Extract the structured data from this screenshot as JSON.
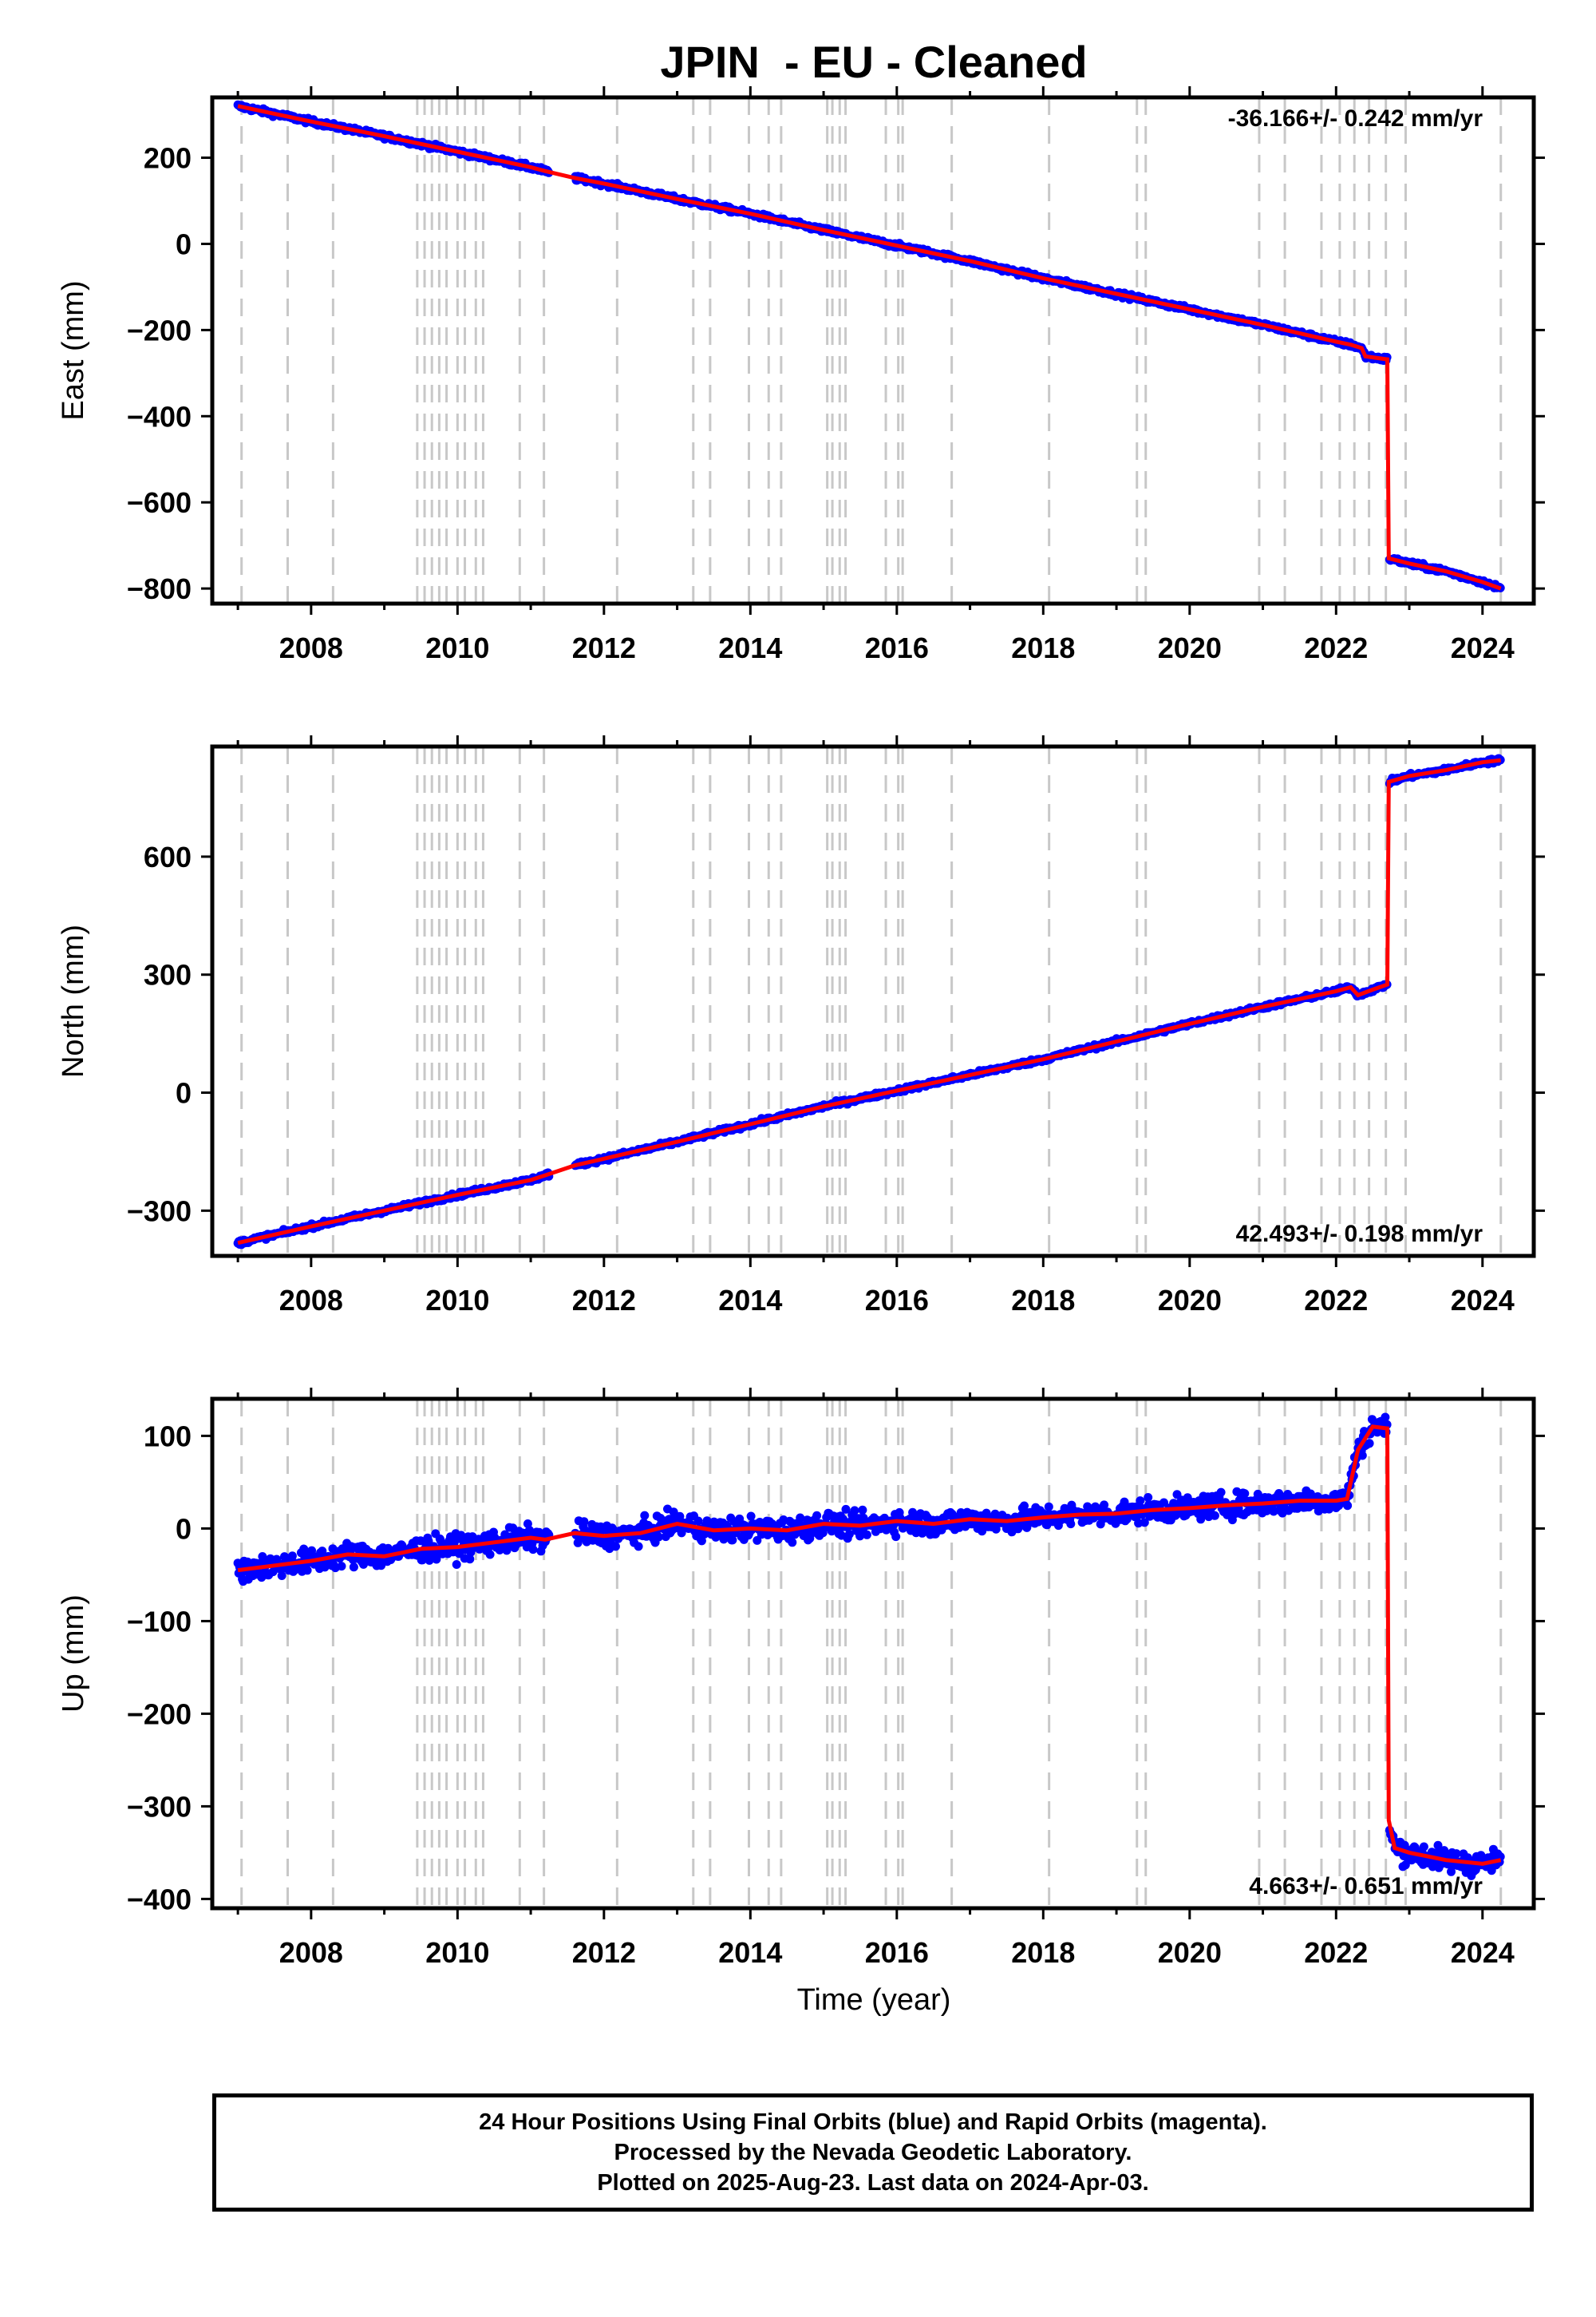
{
  "title": "JPIN  - EU - Cleaned",
  "xlabel": "Time (year)",
  "caption": [
    "24 Hour Positions Using Final Orbits (blue) and Rapid Orbits (magenta).",
    "Processed by the Nevada Geodetic Laboratory.",
    "Plotted on 2025-Aug-23. Last data on 2024-Apr-03."
  ],
  "colors": {
    "data": "#0000ff",
    "model": "#ff0000",
    "event_line": "#c8c8c8",
    "frame": "#000000"
  },
  "chart_data": [
    {
      "type": "scatter",
      "ylabel": "East (mm)",
      "rate_label": "-36.166+/- 0.242 mm/yr",
      "rate_position": "top-right",
      "xlim": [
        2006.65,
        2024.7
      ],
      "ylim": [
        -835,
        340
      ],
      "x_ticks": [
        2008,
        2010,
        2012,
        2014,
        2016,
        2018,
        2020,
        2022,
        2024
      ],
      "y_ticks": [
        -800,
        -600,
        -400,
        -200,
        0,
        200
      ],
      "y_tick_labels": [
        "−800",
        "−600",
        "−400",
        "−200",
        "0",
        "200"
      ],
      "gap": [
        2011.25,
        2011.6
      ],
      "series": [
        {
          "role": "daily positions (blue)",
          "x": [
            2007.0,
            2008.0,
            2009.0,
            2010.0,
            2011.0,
            2011.2,
            2011.6,
            2012.0,
            2013.0,
            2014.0,
            2015.0,
            2016.0,
            2017.0,
            2018.0,
            2019.0,
            2020.0,
            2021.0,
            2022.0,
            2022.2,
            2022.35,
            2022.4,
            2022.7,
            2022.72,
            2023.0,
            2023.5,
            2024.0,
            2024.25
          ],
          "y": [
            320,
            284,
            250,
            214,
            178,
            169,
            153,
            140,
            104,
            70,
            32,
            -4,
            -40,
            -80,
            -116,
            -152,
            -188,
            -227,
            -234,
            -242,
            -261,
            -268,
            -730,
            -742,
            -760,
            -785,
            -800
          ]
        },
        {
          "role": "model fit (red)",
          "x": [
            2007.0,
            2008.0,
            2009.0,
            2010.0,
            2011.0,
            2011.2,
            2011.6,
            2012.0,
            2013.0,
            2014.0,
            2015.0,
            2016.0,
            2017.0,
            2018.0,
            2019.0,
            2020.0,
            2021.0,
            2022.0,
            2022.2,
            2022.35,
            2022.4,
            2022.7,
            2022.72,
            2023.0,
            2023.5,
            2024.0,
            2024.25
          ],
          "y": [
            320,
            284,
            250,
            214,
            178,
            169,
            153,
            140,
            104,
            70,
            32,
            -4,
            -40,
            -80,
            -116,
            -152,
            -188,
            -227,
            -234,
            -242,
            -261,
            -268,
            -730,
            -742,
            -760,
            -785,
            -800
          ]
        }
      ],
      "noise_mm": 4
    },
    {
      "type": "scatter",
      "ylabel": "North (mm)",
      "rate_label": "42.493+/- 0.198 mm/yr",
      "rate_position": "bottom-right",
      "xlim": [
        2006.65,
        2024.7
      ],
      "ylim": [
        -415,
        880
      ],
      "x_ticks": [
        2008,
        2010,
        2012,
        2014,
        2016,
        2018,
        2020,
        2022,
        2024
      ],
      "y_ticks": [
        -300,
        0,
        300,
        600
      ],
      "y_tick_labels": [
        "−300",
        "0",
        "300",
        "600"
      ],
      "gap": [
        2011.25,
        2011.6
      ],
      "series": [
        {
          "role": "daily positions (blue)",
          "x": [
            2007.0,
            2008.0,
            2009.0,
            2010.0,
            2011.0,
            2011.2,
            2011.6,
            2012.0,
            2013.0,
            2014.0,
            2015.0,
            2016.0,
            2017.0,
            2018.0,
            2019.0,
            2020.0,
            2021.0,
            2022.0,
            2022.2,
            2022.3,
            2022.5,
            2022.7,
            2022.72,
            2023.0,
            2023.5,
            2024.0,
            2024.25
          ],
          "y": [
            -382,
            -340,
            -300,
            -260,
            -222,
            -210,
            -185,
            -168,
            -125,
            -80,
            -35,
            5,
            45,
            85,
            130,
            175,
            218,
            258,
            268,
            248,
            262,
            275,
            790,
            805,
            820,
            840,
            845
          ]
        },
        {
          "role": "model fit (red)",
          "x": [
            2007.0,
            2008.0,
            2009.0,
            2010.0,
            2011.0,
            2011.2,
            2011.6,
            2012.0,
            2013.0,
            2014.0,
            2015.0,
            2016.0,
            2017.0,
            2018.0,
            2019.0,
            2020.0,
            2021.0,
            2022.0,
            2022.2,
            2022.3,
            2022.5,
            2022.7,
            2022.72,
            2023.0,
            2023.5,
            2024.0,
            2024.25
          ],
          "y": [
            -382,
            -340,
            -300,
            -260,
            -222,
            -210,
            -185,
            -168,
            -125,
            -80,
            -35,
            5,
            45,
            85,
            130,
            175,
            218,
            258,
            268,
            248,
            262,
            275,
            790,
            805,
            820,
            840,
            845
          ]
        }
      ],
      "noise_mm": 4
    },
    {
      "type": "scatter",
      "ylabel": "Up (mm)",
      "rate_label": "4.663+/- 0.651 mm/yr",
      "rate_position": "bottom-right",
      "xlim": [
        2006.65,
        2024.7
      ],
      "ylim": [
        -410,
        140
      ],
      "x_ticks": [
        2008,
        2010,
        2012,
        2014,
        2016,
        2018,
        2020,
        2022,
        2024
      ],
      "y_ticks": [
        -400,
        -300,
        -200,
        -100,
        0,
        100
      ],
      "y_tick_labels": [
        "−400",
        "−300",
        "−200",
        "−100",
        "0",
        "100"
      ],
      "gap": [
        2011.25,
        2011.6
      ],
      "series": [
        {
          "role": "daily positions (blue)",
          "x": [
            2007.0,
            2007.5,
            2008.0,
            2008.5,
            2009.0,
            2009.5,
            2010.0,
            2010.5,
            2011.0,
            2011.2,
            2011.6,
            2012.0,
            2012.5,
            2013.0,
            2013.5,
            2014.0,
            2014.5,
            2015.0,
            2015.5,
            2016.0,
            2016.5,
            2017.0,
            2017.5,
            2018.0,
            2018.5,
            2019.0,
            2019.5,
            2020.0,
            2020.5,
            2021.0,
            2021.5,
            2022.0,
            2022.15,
            2022.3,
            2022.5,
            2022.7,
            2022.72,
            2022.8,
            2023.0,
            2023.5,
            2024.0,
            2024.25
          ],
          "y": [
            -45,
            -40,
            -35,
            -28,
            -30,
            -22,
            -20,
            -15,
            -10,
            -12,
            -5,
            -8,
            -5,
            5,
            -2,
            0,
            -2,
            5,
            3,
            8,
            5,
            10,
            8,
            12,
            15,
            16,
            20,
            22,
            25,
            27,
            30,
            30,
            32,
            85,
            110,
            108,
            -315,
            -345,
            -350,
            -358,
            -362,
            -358
          ],
          "noise_mm": 9
        },
        {
          "role": "model fit (red)",
          "x": [
            2007.0,
            2007.5,
            2008.0,
            2008.5,
            2009.0,
            2009.5,
            2010.0,
            2010.5,
            2011.0,
            2011.2,
            2011.6,
            2012.0,
            2012.5,
            2013.0,
            2013.5,
            2014.0,
            2014.5,
            2015.0,
            2015.5,
            2016.0,
            2016.5,
            2017.0,
            2017.5,
            2018.0,
            2018.5,
            2019.0,
            2019.5,
            2020.0,
            2020.5,
            2021.0,
            2021.5,
            2022.0,
            2022.15,
            2022.3,
            2022.5,
            2022.7,
            2022.72,
            2022.8,
            2023.0,
            2023.5,
            2024.0,
            2024.25
          ],
          "y": [
            -45,
            -40,
            -35,
            -28,
            -30,
            -22,
            -20,
            -15,
            -10,
            -12,
            -5,
            -8,
            -5,
            5,
            -2,
            0,
            -2,
            5,
            3,
            8,
            5,
            10,
            8,
            12,
            15,
            16,
            20,
            22,
            25,
            27,
            30,
            30,
            32,
            85,
            110,
            108,
            -315,
            -345,
            -350,
            -358,
            -362,
            -358
          ]
        }
      ]
    }
  ],
  "event_lines": [
    2007.05,
    2007.68,
    2008.3,
    2009.45,
    2009.55,
    2009.65,
    2009.75,
    2009.85,
    2010.0,
    2010.1,
    2010.25,
    2010.35,
    2010.85,
    2011.18,
    2012.18,
    2013.22,
    2013.45,
    2013.98,
    2014.25,
    2014.42,
    2015.05,
    2015.12,
    2015.22,
    2015.3,
    2015.85,
    2016.02,
    2016.08,
    2016.75,
    2018.08,
    2019.28,
    2019.4,
    2020.95,
    2021.3,
    2021.8,
    2022.05,
    2022.25,
    2022.45,
    2022.68,
    2022.95,
    2024.25
  ]
}
